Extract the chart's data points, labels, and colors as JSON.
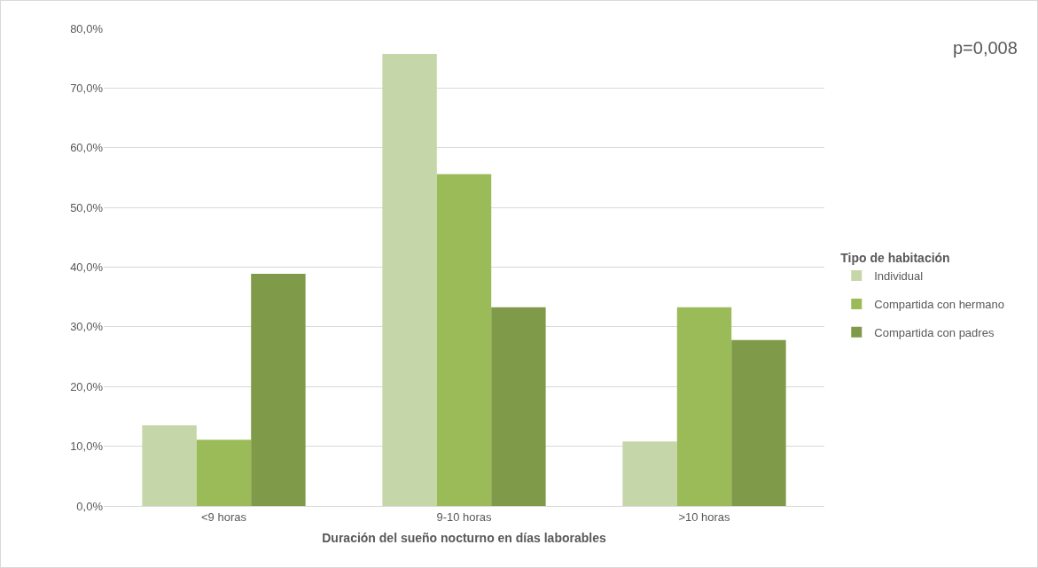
{
  "chart_data": {
    "type": "bar",
    "xlabel": "Duración del sueño nocturno en días laborables",
    "legend_title": "Tipo de habitación",
    "categories": [
      "<9 horas",
      "9-10 horas",
      ">10 horas"
    ],
    "series": [
      {
        "name": "Individual",
        "color": "#c5d6a9",
        "values": [
          13.5,
          75.7,
          10.8
        ]
      },
      {
        "name": "Compartida con hermano",
        "color": "#9bbb59",
        "values": [
          11.1,
          55.6,
          33.3
        ]
      },
      {
        "name": "Compartida con padres",
        "color": "#7f9a48",
        "values": [
          38.9,
          33.3,
          27.8
        ]
      }
    ],
    "ylim": [
      0,
      80
    ],
    "yticks": [
      {
        "value": 0,
        "label": "0,0%"
      },
      {
        "value": 10,
        "label": "10,0%"
      },
      {
        "value": 20,
        "label": "20,0%"
      },
      {
        "value": 30,
        "label": "30,0%"
      },
      {
        "value": 40,
        "label": "40,0%"
      },
      {
        "value": 50,
        "label": "50,0%"
      },
      {
        "value": 60,
        "label": "60,0%"
      },
      {
        "value": 70,
        "label": "70,0%"
      },
      {
        "value": 80,
        "label": "80,0%"
      }
    ],
    "grid": "y",
    "legend": "right",
    "annotations": [
      "p=0,008"
    ]
  }
}
